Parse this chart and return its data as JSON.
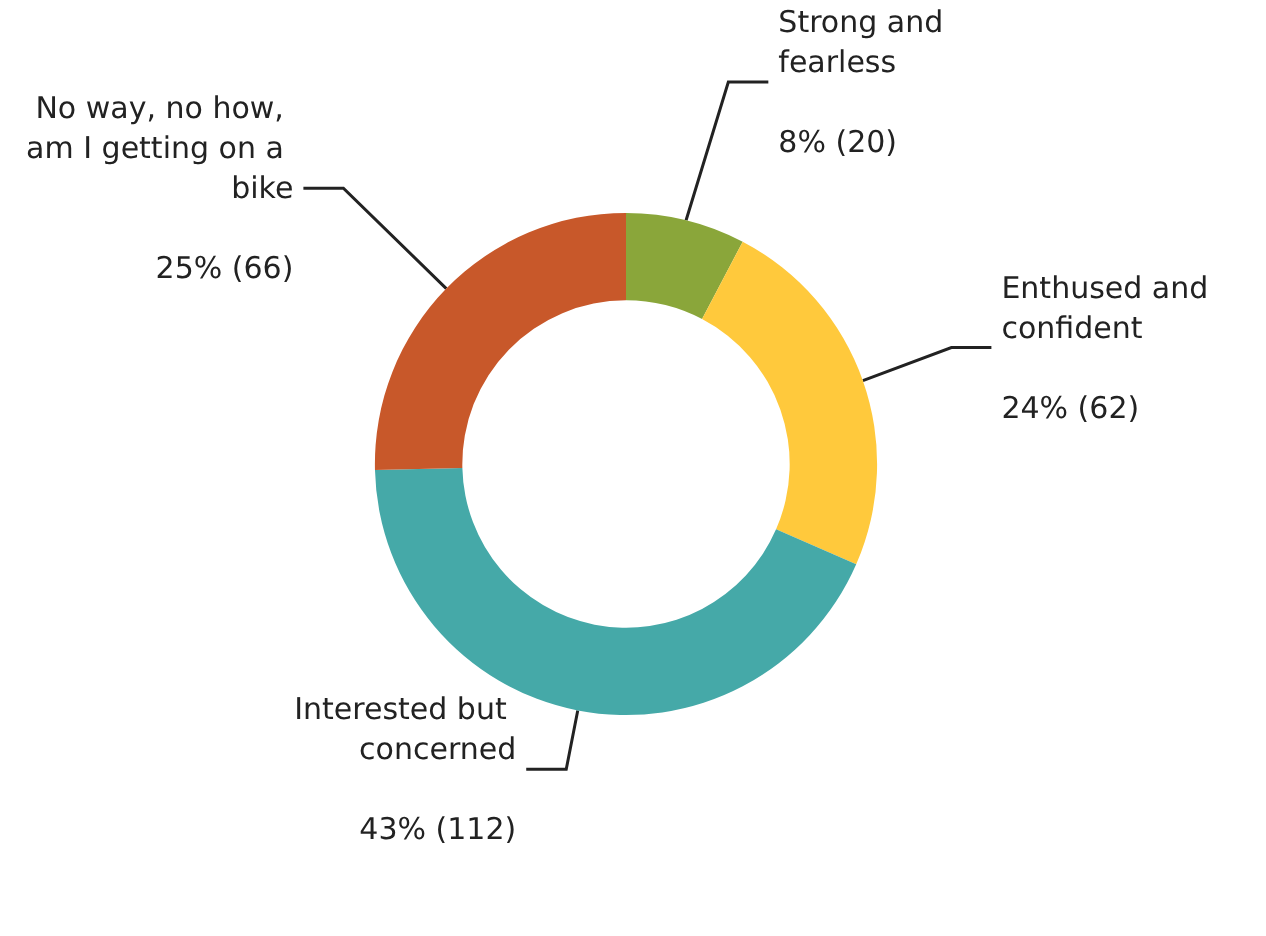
{
  "chart_data": {
    "type": "donut",
    "categories": [
      "Strong and fearless",
      "Enthused and confident",
      "Interested but concerned",
      "No way, no how, am I getting on a bike"
    ],
    "values": [
      20,
      62,
      112,
      66
    ],
    "value_labels": [
      "8% (20)",
      "24% (62)",
      "43% (112)",
      "25% (66)"
    ],
    "colors": [
      "#8aa63a",
      "#ffc93c",
      "#45a9a8",
      "#c8582a"
    ],
    "legend": false
  }
}
